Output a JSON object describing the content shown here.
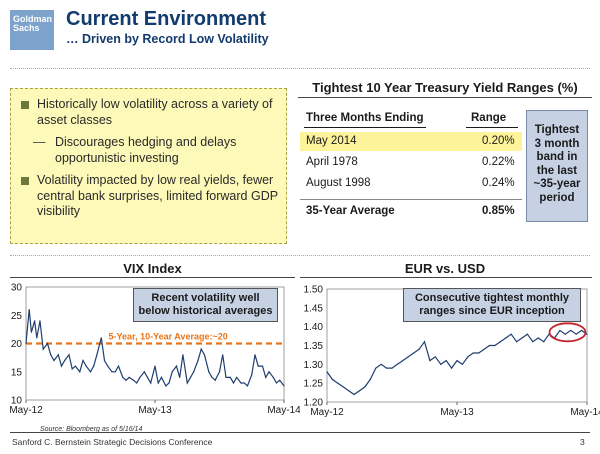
{
  "header": {
    "logo_line1": "Goldman",
    "logo_line2": "Sachs",
    "title": "Current Environment",
    "subtitle": "… Driven by Record Low Volatility"
  },
  "bullets": {
    "b1": "Historically low volatility across a variety of asset classes",
    "b1_sub": "Discourages hedging and delays opportunistic investing",
    "b1_sub_marker": "—",
    "b2": "Volatility impacted by low real yields, fewer central bank surprises, limited forward GDP visibility"
  },
  "table": {
    "title": "Tightest 10 Year Treasury Yield Ranges (%)",
    "col1": "Three Months Ending",
    "col2": "Range",
    "rows": [
      {
        "label": "May 2014",
        "value": "0.20%"
      },
      {
        "label": "April 1978",
        "value": "0.22%"
      },
      {
        "label": "August 1998",
        "value": "0.24%"
      }
    ],
    "avg_label": "35-Year Average",
    "avg_value": "0.85%",
    "callout": [
      "Tightest",
      "3 month",
      "band in",
      "the last",
      "~35-year",
      "period"
    ]
  },
  "vix": {
    "title": "VIX Index",
    "callout_line1": "Recent volatility well",
    "callout_line2": "below historical averages",
    "avg_label": "5-Year, 10-Year Average:~20"
  },
  "eur": {
    "title": "EUR vs. USD",
    "callout_line1": "Consecutive tightest monthly",
    "callout_line2": "ranges since EUR inception"
  },
  "footer": {
    "source": "Source: Bloomberg as of 5/16/14",
    "text": "Sanford C. Bernstein Strategic Decisions Conference",
    "page": "3"
  },
  "chart_data": [
    {
      "type": "line",
      "title": "VIX Index",
      "ylim": [
        10,
        30
      ],
      "yticks": [
        "10",
        "15",
        "20",
        "25",
        "30"
      ],
      "xticks": [
        "May-12",
        "May-13",
        "May-14"
      ],
      "reference_line": {
        "value": 20,
        "label": "5-Year, 10-Year Average:~20",
        "color": "#e8751a"
      },
      "series": [
        {
          "name": "VIX",
          "color": "#1f3f6e",
          "x": [
            0,
            0.3,
            0.5,
            0.8,
            1,
            1.3,
            1.6,
            2,
            2.3,
            2.6,
            3,
            3.3,
            3.6,
            4,
            4.3,
            4.6,
            5,
            5.3,
            5.6,
            6,
            6.3,
            6.6,
            7,
            7.3,
            7.6,
            8,
            8.3,
            8.6,
            9,
            9.3,
            9.6,
            10,
            10.3,
            10.6,
            11,
            11.3,
            11.6,
            12,
            12.3,
            12.6,
            13,
            13.3,
            13.6,
            14,
            14.3,
            14.6,
            15,
            15.3,
            15.6,
            16,
            16.3,
            16.6,
            17,
            17.3,
            17.6,
            18,
            18.3,
            18.6,
            19,
            19.3,
            19.6,
            20,
            20.3,
            20.6,
            21,
            21.3,
            21.6,
            22,
            22.3,
            22.6,
            23,
            23.3,
            23.6,
            24
          ],
          "values": [
            20,
            26,
            22,
            24,
            21,
            24,
            19,
            20,
            18,
            17,
            18,
            16,
            17,
            18,
            15.5,
            16,
            15,
            17,
            16,
            15,
            16,
            18,
            21,
            17,
            16,
            15,
            15,
            16,
            14,
            13.5,
            14,
            13.5,
            13,
            14,
            15,
            14,
            13,
            16,
            13,
            14,
            12.5,
            13,
            15,
            16,
            14,
            18,
            13,
            14,
            15,
            17,
            19,
            18,
            15,
            14,
            13.5,
            15,
            18,
            14,
            14,
            13,
            14,
            13,
            13,
            12.5,
            14.5,
            18,
            16,
            16,
            14,
            15,
            14,
            13,
            13.5,
            12.5
          ]
        }
      ]
    },
    {
      "type": "line",
      "title": "EUR vs. USD",
      "ylim": [
        1.2,
        1.5
      ],
      "yticks": [
        "1.20",
        "1.25",
        "1.30",
        "1.35",
        "1.40",
        "1.45",
        "1.50"
      ],
      "xticks": [
        "May-12",
        "May-13",
        "May-14"
      ],
      "series": [
        {
          "name": "EURUSD",
          "color": "#1f3f6e",
          "x": [
            0,
            0.5,
            1,
            1.5,
            2,
            2.5,
            3,
            3.5,
            4,
            4.5,
            5,
            5.5,
            6,
            6.5,
            7,
            7.5,
            8,
            8.5,
            9,
            9.5,
            10,
            10.5,
            11,
            11.5,
            12,
            12.5,
            13,
            13.5,
            14,
            14.5,
            15,
            15.5,
            16,
            16.5,
            17,
            17.5,
            18,
            18.5,
            19,
            19.5,
            20,
            20.5,
            21,
            21.5,
            22,
            22.5,
            23,
            23.5,
            24
          ],
          "values": [
            1.28,
            1.26,
            1.25,
            1.24,
            1.23,
            1.22,
            1.23,
            1.24,
            1.26,
            1.29,
            1.3,
            1.29,
            1.29,
            1.3,
            1.31,
            1.32,
            1.33,
            1.34,
            1.36,
            1.31,
            1.32,
            1.3,
            1.31,
            1.29,
            1.31,
            1.3,
            1.32,
            1.33,
            1.33,
            1.34,
            1.35,
            1.35,
            1.36,
            1.37,
            1.38,
            1.36,
            1.37,
            1.38,
            1.36,
            1.37,
            1.36,
            1.38,
            1.37,
            1.39,
            1.38,
            1.39,
            1.38,
            1.39,
            1.38
          ]
        }
      ],
      "highlight_ellipse": {
        "x_center": 22.2,
        "y_center": 1.385,
        "color": "#c0262c"
      }
    }
  ]
}
